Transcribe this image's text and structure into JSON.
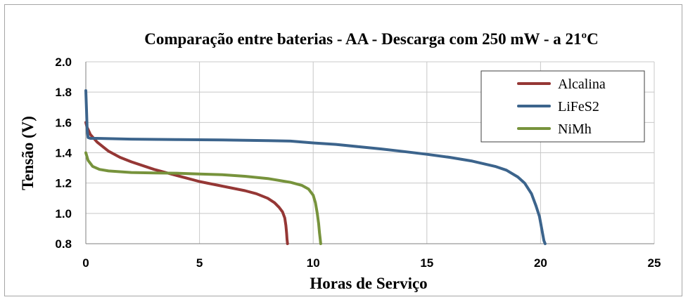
{
  "chart_data": {
    "type": "line",
    "title": "Comparação entre baterias - AA - Descarga com 250 mW - a 21ºC",
    "xlabel": "Horas de Serviço",
    "ylabel": "Tensão (V)",
    "xlim": [
      0,
      25
    ],
    "ylim": [
      0.8,
      2.0
    ],
    "xticks": [
      "0",
      "5",
      "10",
      "15",
      "20",
      "25"
    ],
    "yticks": [
      "0.8",
      "1.0",
      "1.2",
      "1.4",
      "1.6",
      "1.8",
      "2.0"
    ],
    "grid": true,
    "legend_position": "top-right",
    "series": [
      {
        "name": "Alcalina",
        "color": "#953735",
        "x": [
          0,
          0.05,
          0.2,
          0.5,
          1,
          1.5,
          2,
          3,
          4,
          5,
          6,
          7,
          7.5,
          8,
          8.3,
          8.5,
          8.65,
          8.75,
          8.8,
          8.83,
          8.85,
          8.87
        ],
        "y": [
          1.6,
          1.57,
          1.52,
          1.47,
          1.41,
          1.37,
          1.34,
          1.29,
          1.25,
          1.21,
          1.18,
          1.15,
          1.13,
          1.1,
          1.07,
          1.04,
          1.01,
          0.97,
          0.92,
          0.87,
          0.83,
          0.8
        ]
      },
      {
        "name": "LiFeS2",
        "color": "#3c648c",
        "x": [
          0,
          0.03,
          0.06,
          0.1,
          0.2,
          0.5,
          2,
          4,
          6,
          8,
          9,
          10,
          11,
          12,
          13,
          14,
          15,
          16,
          17,
          18,
          18.5,
          19,
          19.3,
          19.6,
          19.8,
          19.95,
          20.05,
          20.1,
          20.15,
          20.2
        ],
        "y": [
          1.81,
          1.68,
          1.55,
          1.5,
          1.495,
          1.495,
          1.49,
          1.487,
          1.485,
          1.48,
          1.477,
          1.465,
          1.455,
          1.44,
          1.425,
          1.408,
          1.39,
          1.37,
          1.345,
          1.31,
          1.285,
          1.24,
          1.2,
          1.13,
          1.05,
          0.98,
          0.9,
          0.86,
          0.82,
          0.8
        ]
      },
      {
        "name": "NiMh",
        "color": "#77933c",
        "x": [
          0,
          0.1,
          0.3,
          0.6,
          1,
          2,
          3,
          4,
          5,
          6,
          7,
          8,
          9,
          9.5,
          9.8,
          10,
          10.1,
          10.18,
          10.24,
          10.28,
          10.31,
          10.33
        ],
        "y": [
          1.4,
          1.35,
          1.31,
          1.29,
          1.28,
          1.27,
          1.267,
          1.265,
          1.26,
          1.255,
          1.245,
          1.23,
          1.205,
          1.185,
          1.16,
          1.12,
          1.07,
          1.0,
          0.93,
          0.87,
          0.83,
          0.8
        ]
      }
    ]
  }
}
